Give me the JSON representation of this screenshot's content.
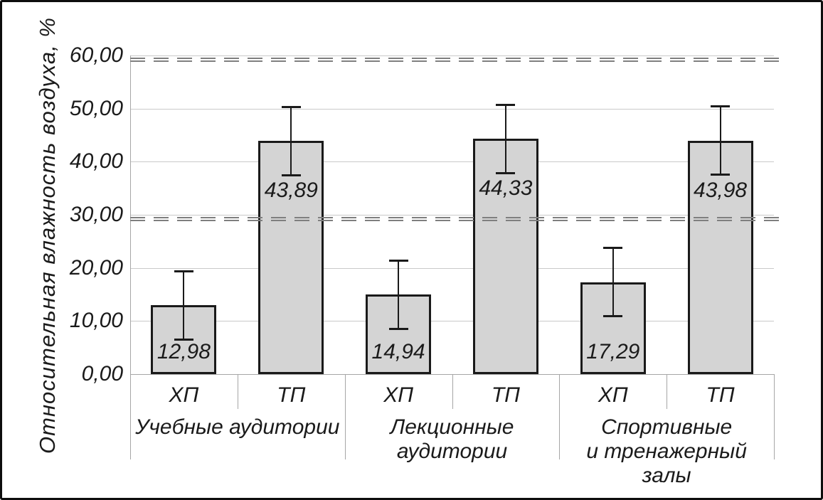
{
  "chart_data": {
    "type": "bar",
    "title": "",
    "ylabel": "Относительная влажность воздуха, %",
    "xlabel": "",
    "ylim": [
      0,
      60
    ],
    "grid": "horizontal solid light-gray",
    "legend_position": "none",
    "yticks": [
      {
        "value": 0,
        "label": "0,00"
      },
      {
        "value": 10,
        "label": "10,00"
      },
      {
        "value": 20,
        "label": "20,00"
      },
      {
        "value": 30,
        "label": "30,00"
      },
      {
        "value": 40,
        "label": "40,00"
      },
      {
        "value": 50,
        "label": "50,00"
      },
      {
        "value": 60,
        "label": "60,00"
      }
    ],
    "groups": [
      {
        "label_lines": [
          "Учебные аудитории"
        ],
        "bars": [
          {
            "category": "ХП",
            "value": 12.98,
            "value_label": "12,98",
            "error": 6.5
          },
          {
            "category": "ТП",
            "value": 43.89,
            "value_label": "43,89",
            "error": 6.5
          }
        ]
      },
      {
        "label_lines": [
          "Лекционные",
          "аудитории"
        ],
        "bars": [
          {
            "category": "ХП",
            "value": 14.94,
            "value_label": "14,94",
            "error": 6.5
          },
          {
            "category": "ТП",
            "value": 44.33,
            "value_label": "44,33",
            "error": 6.5
          }
        ]
      },
      {
        "label_lines": [
          "Спортивные",
          "и тренажерный",
          "залы"
        ],
        "bars": [
          {
            "category": "ХП",
            "value": 17.29,
            "value_label": "17,29",
            "error": 6.5
          },
          {
            "category": "ТП",
            "value": 43.98,
            "value_label": "43,98",
            "error": 6.5
          }
        ]
      }
    ],
    "reference_lines": [
      {
        "value": 60,
        "style": "double-dashed",
        "color": "#7f7f7f"
      },
      {
        "value": 30,
        "style": "double-dashed",
        "color": "#7f7f7f"
      }
    ],
    "colors": {
      "bar_fill": "#d4d4d4",
      "bar_border": "#1a1a1a",
      "gridline": "#c9c9c9",
      "axis_line": "#a6a6a6",
      "reference_line": "#7f7f7f",
      "text": "#1a1a1a",
      "frame_border": "#0d0d0d",
      "background": "#ffffff"
    }
  }
}
